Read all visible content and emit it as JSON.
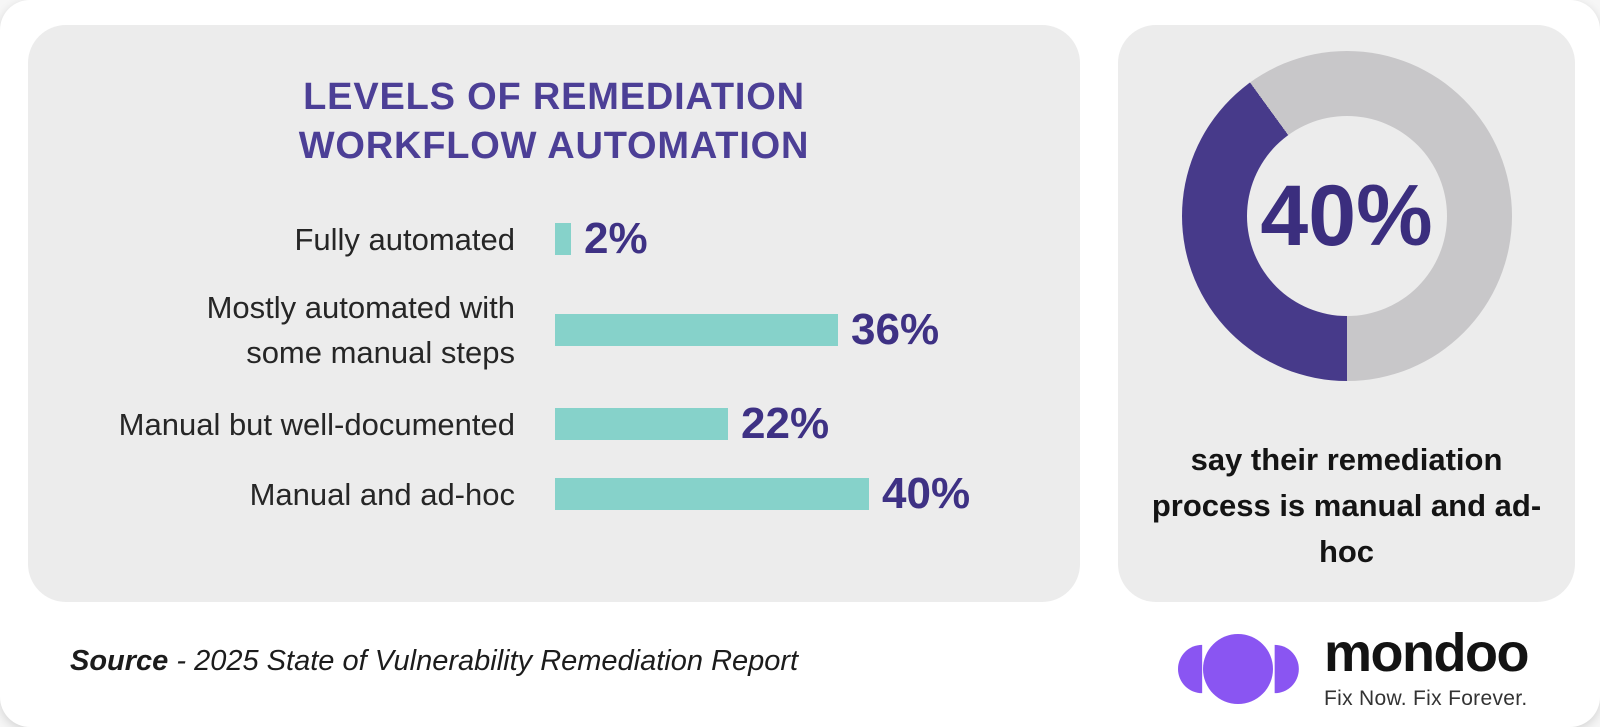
{
  "chart_data": [
    {
      "type": "bar",
      "orientation": "horizontal",
      "title": "LEVELS OF REMEDIATION\nWORKFLOW AUTOMATION",
      "categories": [
        "Fully automated",
        "Mostly automated with\nsome manual steps",
        "Manual but well-documented",
        "Manual and ad-hoc"
      ],
      "values": [
        2,
        36,
        22,
        40
      ],
      "value_labels": [
        "2%",
        "36%",
        "22%",
        "40%"
      ],
      "xlim": [
        0,
        40
      ],
      "grid": false,
      "legend": "none",
      "bar_color": "#86d2ca",
      "value_label_color": "#3e3184",
      "title_color": "#4c3f96",
      "category_color": "#262626"
    },
    {
      "type": "pie",
      "subtype": "donut",
      "value": 40,
      "value_label": "40%",
      "caption": "say their remediation process is manual and ad-hoc",
      "segment_color": "#473a8a",
      "track_color": "#c8c7c9",
      "value_label_color": "#3b2e7e"
    }
  ],
  "footer": {
    "source_label": "Source",
    "source_text": "- 2025 State of Vulnerability Remediation Report",
    "brand_name": "mondoo",
    "brand_tagline": "Fix Now. Fix Forever.",
    "brand_color": "#8a55f2"
  },
  "colors": {
    "card_background": "#ececec",
    "canvas_background": "#ffffff"
  }
}
